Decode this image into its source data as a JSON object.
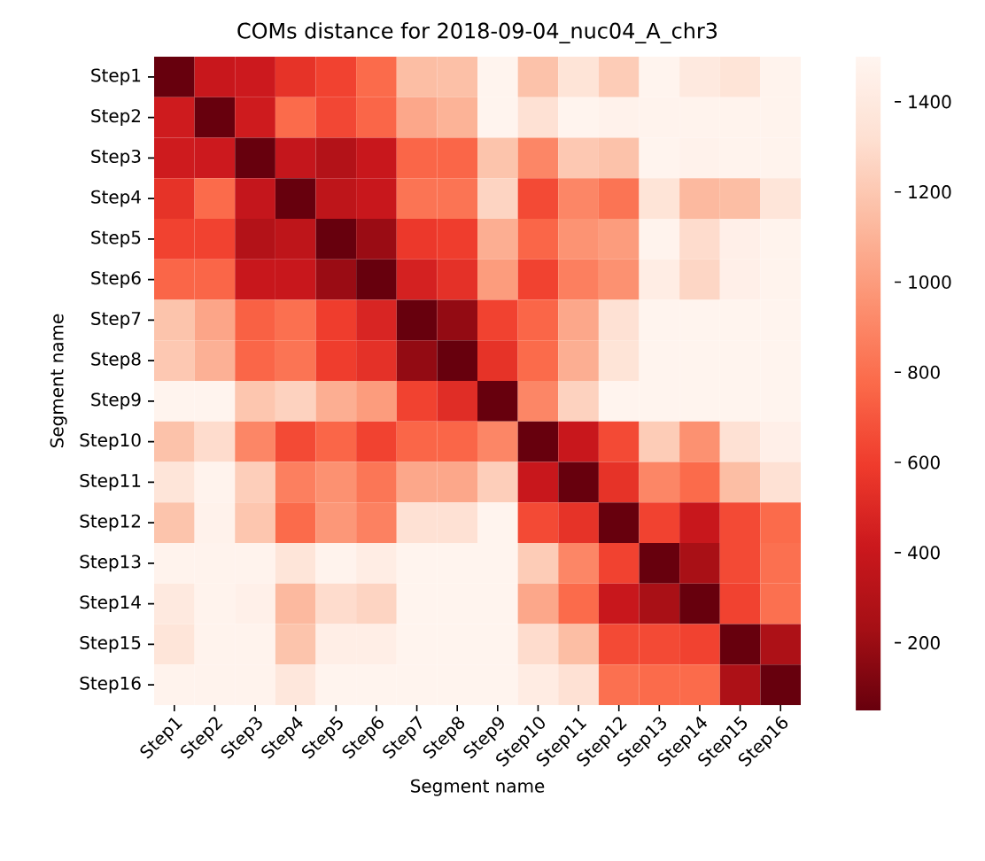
{
  "chart_data": {
    "type": "heatmap",
    "title": "COMs distance for 2018-09-04_nuc04_A_chr3",
    "xlabel": "Segment name",
    "ylabel": "Segment name",
    "categories": [
      "Step1",
      "Step2",
      "Step3",
      "Step4",
      "Step5",
      "Step6",
      "Step7",
      "Step8",
      "Step9",
      "Step10",
      "Step11",
      "Step12",
      "Step13",
      "Step14",
      "Step15",
      "Step16"
    ],
    "y_categories": [
      "Step1",
      "Step2",
      "Step3",
      "Step4",
      "Step5",
      "Step6",
      "Step7",
      "Step8",
      "Step9",
      "Step10",
      "Step11",
      "Step12",
      "Step13",
      "Step14",
      "Step15",
      "Step16"
    ],
    "cells": [
      [
        50,
        400,
        420,
        550,
        620,
        780,
        1150,
        1160,
        1490,
        1170,
        1350,
        1220,
        1490,
        1400,
        1350,
        1480
      ],
      [
        430,
        50,
        430,
        780,
        640,
        760,
        1050,
        1100,
        1490,
        1330,
        1490,
        1470,
        1480,
        1480,
        1480,
        1480
      ],
      [
        430,
        420,
        50,
        380,
        300,
        400,
        760,
        760,
        1180,
        900,
        1200,
        1170,
        1490,
        1470,
        1480,
        1480
      ],
      [
        550,
        780,
        380,
        50,
        350,
        400,
        820,
        820,
        1260,
        650,
        900,
        820,
        1350,
        1130,
        1150,
        1360
      ],
      [
        620,
        620,
        300,
        350,
        50,
        200,
        580,
        600,
        1080,
        760,
        960,
        1000,
        1480,
        1300,
        1450,
        1480
      ],
      [
        760,
        760,
        400,
        400,
        200,
        50,
        460,
        540,
        1000,
        620,
        870,
        950,
        1430,
        1270,
        1450,
        1480
      ],
      [
        1180,
        1040,
        740,
        800,
        600,
        480,
        50,
        180,
        620,
        760,
        1050,
        1330,
        1490,
        1490,
        1490,
        1490
      ],
      [
        1200,
        1090,
        760,
        820,
        600,
        540,
        180,
        50,
        550,
        780,
        1080,
        1350,
        1490,
        1490,
        1490,
        1490
      ],
      [
        1490,
        1490,
        1190,
        1250,
        1080,
        1000,
        620,
        520,
        50,
        900,
        1250,
        1490,
        1490,
        1490,
        1490,
        1490
      ],
      [
        1170,
        1300,
        900,
        650,
        760,
        620,
        760,
        760,
        900,
        50,
        400,
        650,
        1220,
        950,
        1330,
        1450
      ],
      [
        1360,
        1480,
        1230,
        870,
        950,
        830,
        1050,
        1050,
        1230,
        400,
        50,
        550,
        900,
        780,
        1150,
        1330
      ],
      [
        1180,
        1470,
        1190,
        780,
        980,
        880,
        1330,
        1330,
        1490,
        650,
        550,
        50,
        620,
        400,
        650,
        780
      ],
      [
        1480,
        1480,
        1480,
        1360,
        1480,
        1430,
        1490,
        1490,
        1490,
        1220,
        900,
        620,
        50,
        250,
        650,
        800
      ],
      [
        1400,
        1480,
        1460,
        1130,
        1300,
        1260,
        1490,
        1490,
        1490,
        1050,
        780,
        400,
        250,
        50,
        620,
        800
      ],
      [
        1360,
        1480,
        1480,
        1180,
        1440,
        1440,
        1490,
        1490,
        1490,
        1300,
        1150,
        650,
        650,
        620,
        50,
        270
      ],
      [
        1480,
        1480,
        1480,
        1380,
        1490,
        1490,
        1490,
        1490,
        1490,
        1420,
        1330,
        800,
        780,
        780,
        270,
        50
      ]
    ],
    "clim": [
      50,
      1500
    ],
    "cticks": [
      200,
      400,
      600,
      800,
      1000,
      1200,
      1400
    ]
  }
}
